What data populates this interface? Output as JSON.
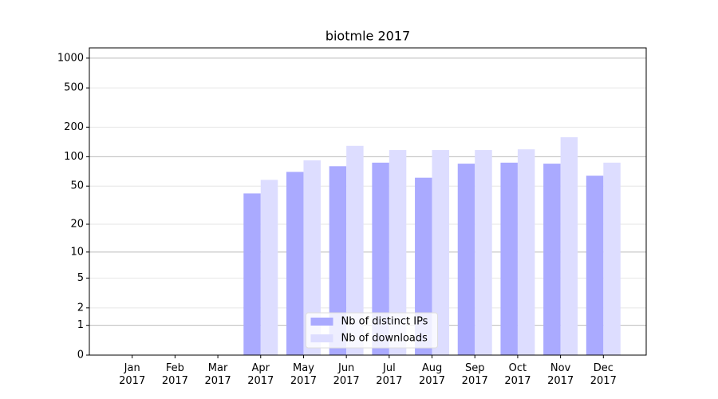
{
  "chart_data": {
    "type": "bar",
    "title": "biotmle 2017",
    "categories": [
      "Jan\n2017",
      "Feb\n2017",
      "Mar\n2017",
      "Apr\n2017",
      "May\n2017",
      "Jun\n2017",
      "Jul\n2017",
      "Aug\n2017",
      "Sep\n2017",
      "Oct\n2017",
      "Nov\n2017",
      "Dec\n2017"
    ],
    "series": [
      {
        "name": "Nb of distinct IPs",
        "color": "#aaaaff",
        "values": [
          0,
          0,
          0,
          42,
          70,
          80,
          87,
          61,
          85,
          87,
          85,
          64
        ]
      },
      {
        "name": "Nb of downloads",
        "color": "#ddddff",
        "values": [
          0,
          0,
          0,
          58,
          92,
          129,
          117,
          117,
          117,
          119,
          158,
          87
        ]
      }
    ],
    "ylim": [
      0,
      1270
    ],
    "yticks": [
      0,
      1,
      2,
      5,
      10,
      20,
      50,
      100,
      200,
      500,
      1000
    ],
    "yscale": "symlog",
    "grid": true,
    "legend": "lower center"
  }
}
